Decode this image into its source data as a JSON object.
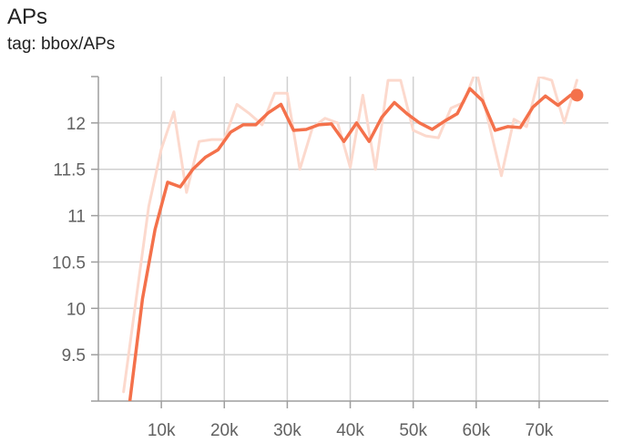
{
  "card": {
    "title": "APs",
    "subtitle": "tag: bbox/APs"
  },
  "colors": {
    "smoothed_line": "#f4714b",
    "raw_line": "#fcd9cd",
    "grid": "#d0d0d0",
    "axis": "#9e9e9e",
    "tick_label": "#616161"
  },
  "chart_data": {
    "type": "line",
    "title": "APs",
    "subtitle": "tag: bbox/APs",
    "xlabel": "",
    "ylabel": "",
    "xlim": [
      0,
      81000
    ],
    "ylim": [
      9.0,
      12.5
    ],
    "grid": true,
    "legend": "none",
    "x_ticks": [
      {
        "value": 10000,
        "label": "10k"
      },
      {
        "value": 20000,
        "label": "20k"
      },
      {
        "value": 30000,
        "label": "30k"
      },
      {
        "value": 40000,
        "label": "40k"
      },
      {
        "value": 50000,
        "label": "50k"
      },
      {
        "value": 60000,
        "label": "60k"
      },
      {
        "value": 70000,
        "label": "70k"
      }
    ],
    "y_ticks": [
      {
        "value": 9.5,
        "label": "9.5"
      },
      {
        "value": 10,
        "label": "10"
      },
      {
        "value": 10.5,
        "label": "10.5"
      },
      {
        "value": 11,
        "label": "11"
      },
      {
        "value": 11.5,
        "label": "11.5"
      },
      {
        "value": 12,
        "label": "12"
      }
    ],
    "series": [
      {
        "key": "raw",
        "x": [
          4000,
          6000,
          8000,
          10000,
          12000,
          14000,
          16000,
          18000,
          20000,
          22000,
          24000,
          26000,
          28000,
          30000,
          32000,
          34000,
          36000,
          38000,
          40000,
          42000,
          44000,
          46000,
          48000,
          50000,
          52000,
          54000,
          56000,
          58000,
          60000,
          62000,
          64000,
          66000,
          68000,
          70000,
          72000,
          74000,
          76000
        ],
        "y": [
          9.1,
          10.1,
          11.1,
          11.72,
          12.12,
          11.25,
          11.8,
          11.82,
          11.82,
          12.2,
          12.1,
          11.98,
          12.32,
          12.32,
          11.5,
          11.95,
          12.05,
          12.0,
          11.52,
          12.3,
          11.5,
          12.46,
          12.46,
          11.92,
          11.86,
          11.84,
          12.16,
          12.22,
          12.57,
          12.0,
          11.43,
          12.04,
          11.96,
          12.5,
          12.46,
          12.0,
          12.46
        ]
      },
      {
        "key": "smoothed",
        "x": [
          5000,
          7000,
          9000,
          11000,
          13000,
          15000,
          17000,
          19000,
          21000,
          23000,
          25000,
          27000,
          29000,
          31000,
          33000,
          35000,
          37000,
          39000,
          41000,
          43000,
          45000,
          47000,
          49000,
          51000,
          53000,
          55000,
          57000,
          59000,
          61000,
          63000,
          65000,
          67000,
          69000,
          71000,
          73000,
          75000
        ],
        "y": [
          9.0,
          10.1,
          10.85,
          11.36,
          11.31,
          11.5,
          11.63,
          11.71,
          11.9,
          11.98,
          11.98,
          12.11,
          12.2,
          11.92,
          11.93,
          11.98,
          11.99,
          11.8,
          12.0,
          11.8,
          12.06,
          12.22,
          12.1,
          12.0,
          11.93,
          12.02,
          12.1,
          12.37,
          12.24,
          11.92,
          11.96,
          11.95,
          12.17,
          12.29,
          12.19,
          12.3
        ]
      }
    ],
    "highlight_point": {
      "x": 76000,
      "y": 12.3
    }
  }
}
